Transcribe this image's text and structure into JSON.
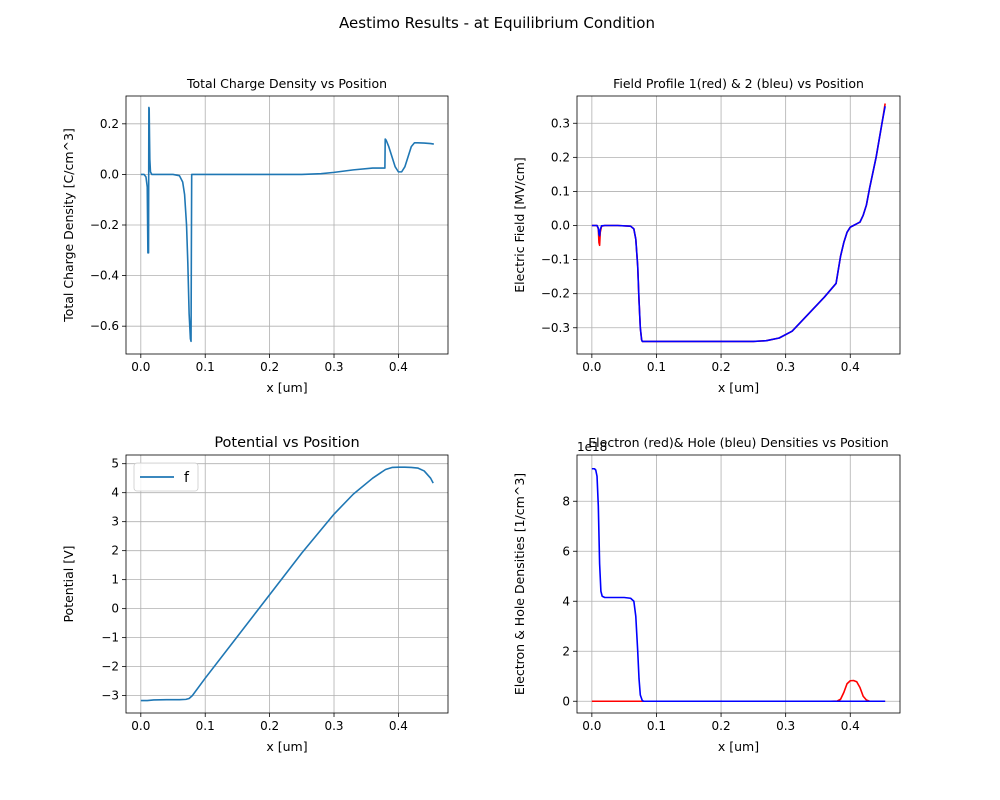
{
  "figure": {
    "suptitle": "Aestimo Results - at Equilibrium Condition"
  },
  "chart_data": [
    {
      "type": "line",
      "title": "Total Charge Density vs Position",
      "xlabel": "x [um]",
      "ylabel": "Total Charge Density [C/cm^3]",
      "xlim": [
        -0.023,
        0.477
      ],
      "ylim": [
        -0.71,
        0.31
      ],
      "xticks": [
        0.0,
        0.1,
        0.2,
        0.3,
        0.4
      ],
      "xtick_labels": [
        "0.0",
        "0.1",
        "0.2",
        "0.3",
        "0.4"
      ],
      "yticks": [
        -0.6,
        -0.4,
        -0.2,
        0.0,
        0.2
      ],
      "ytick_labels": [
        "−0.6",
        "−0.4",
        "−0.2",
        "0.0",
        "0.2"
      ],
      "grid": true,
      "series": [
        {
          "color": "#1f77b4",
          "x": [
            0.0,
            0.005,
            0.008,
            0.01,
            0.011,
            0.012,
            0.0125,
            0.013,
            0.0135,
            0.014,
            0.015,
            0.017,
            0.02,
            0.03,
            0.05,
            0.06,
            0.065,
            0.068,
            0.071,
            0.073,
            0.075,
            0.077,
            0.078,
            0.0785,
            0.079,
            0.08,
            0.1,
            0.2,
            0.25,
            0.28,
            0.3,
            0.33,
            0.36,
            0.379,
            0.3795,
            0.381,
            0.385,
            0.39,
            0.395,
            0.4,
            0.405,
            0.41,
            0.415,
            0.42,
            0.425,
            0.43,
            0.44,
            0.45,
            0.455
          ],
          "y": [
            0.0,
            0.0,
            -0.01,
            -0.05,
            -0.31,
            -0.31,
            0.265,
            0.26,
            0.15,
            0.06,
            0.01,
            0.0,
            0.0,
            0.0,
            0.0,
            -0.005,
            -0.03,
            -0.08,
            -0.2,
            -0.35,
            -0.55,
            -0.65,
            -0.66,
            -0.3,
            0.0,
            0.0,
            0.0,
            0.0,
            0.0,
            0.003,
            0.008,
            0.018,
            0.025,
            0.025,
            0.14,
            0.135,
            0.11,
            0.07,
            0.03,
            0.01,
            0.01,
            0.03,
            0.07,
            0.11,
            0.125,
            0.125,
            0.124,
            0.122,
            0.12
          ]
        }
      ]
    },
    {
      "type": "line",
      "title": "Field Profile 1(red) & 2 (bleu) vs Position",
      "xlabel": "x [um]",
      "ylabel": "Electric Field  [MV/cm]",
      "xlim": [
        -0.023,
        0.477
      ],
      "ylim": [
        -0.377,
        0.38
      ],
      "xticks": [
        0.0,
        0.1,
        0.2,
        0.3,
        0.4
      ],
      "xtick_labels": [
        "0.0",
        "0.1",
        "0.2",
        "0.3",
        "0.4"
      ],
      "yticks": [
        -0.3,
        -0.2,
        -0.1,
        0.0,
        0.1,
        0.2,
        0.3
      ],
      "ytick_labels": [
        "−0.3",
        "−0.2",
        "−0.1",
        "0.0",
        "0.1",
        "0.2",
        "0.3"
      ],
      "grid": true,
      "series": [
        {
          "color": "#ff0000",
          "x": [
            0.0,
            0.008,
            0.01,
            0.011,
            0.012,
            0.013,
            0.015,
            0.02,
            0.04,
            0.06,
            0.065,
            0.068,
            0.071,
            0.073,
            0.075,
            0.077,
            0.078,
            0.08,
            0.1,
            0.2,
            0.25,
            0.27,
            0.29,
            0.31,
            0.33,
            0.36,
            0.378,
            0.385,
            0.39,
            0.395,
            0.4,
            0.405,
            0.41,
            0.415,
            0.42,
            0.425,
            0.43,
            0.44,
            0.45,
            0.454
          ],
          "y": [
            0.0,
            0.0,
            -0.01,
            -0.05,
            -0.058,
            -0.02,
            -0.002,
            0.0,
            0.0,
            -0.002,
            -0.01,
            -0.04,
            -0.12,
            -0.22,
            -0.3,
            -0.335,
            -0.34,
            -0.34,
            -0.34,
            -0.34,
            -0.34,
            -0.338,
            -0.33,
            -0.31,
            -0.27,
            -0.21,
            -0.17,
            -0.09,
            -0.05,
            -0.02,
            -0.005,
            0.0,
            0.005,
            0.01,
            0.03,
            0.06,
            0.11,
            0.2,
            0.31,
            0.358
          ]
        },
        {
          "color": "#0000ff",
          "x": [
            0.0,
            0.008,
            0.01,
            0.011,
            0.012,
            0.013,
            0.015,
            0.02,
            0.04,
            0.06,
            0.065,
            0.068,
            0.071,
            0.073,
            0.075,
            0.077,
            0.078,
            0.08,
            0.1,
            0.2,
            0.25,
            0.27,
            0.29,
            0.31,
            0.33,
            0.36,
            0.378,
            0.385,
            0.39,
            0.395,
            0.4,
            0.405,
            0.41,
            0.415,
            0.42,
            0.425,
            0.43,
            0.44,
            0.45,
            0.454
          ],
          "y": [
            0.0,
            0.0,
            -0.008,
            -0.025,
            -0.03,
            -0.012,
            -0.001,
            0.0,
            0.0,
            -0.002,
            -0.01,
            -0.04,
            -0.12,
            -0.22,
            -0.3,
            -0.335,
            -0.34,
            -0.34,
            -0.34,
            -0.34,
            -0.34,
            -0.338,
            -0.33,
            -0.31,
            -0.27,
            -0.21,
            -0.17,
            -0.09,
            -0.05,
            -0.02,
            -0.005,
            0.0,
            0.005,
            0.01,
            0.03,
            0.06,
            0.11,
            0.2,
            0.31,
            0.35
          ]
        }
      ]
    },
    {
      "type": "line",
      "title": "Potential vs Position",
      "xlabel": "x [um]",
      "ylabel": "Potential [V]",
      "xlim": [
        -0.023,
        0.477
      ],
      "ylim": [
        -3.6,
        5.3
      ],
      "xticks": [
        0.0,
        0.1,
        0.2,
        0.3,
        0.4
      ],
      "xtick_labels": [
        "0.0",
        "0.1",
        "0.2",
        "0.3",
        "0.4"
      ],
      "yticks": [
        -3,
        -2,
        -1,
        0,
        1,
        2,
        3,
        4,
        5
      ],
      "ytick_labels": [
        "−3",
        "−2",
        "−1",
        "0",
        "1",
        "2",
        "3",
        "4",
        "5"
      ],
      "grid": true,
      "legend": {
        "position": "upper-left",
        "entries": [
          "f"
        ]
      },
      "series": [
        {
          "name": "f",
          "color": "#1f77b4",
          "x": [
            0.0,
            0.01,
            0.02,
            0.04,
            0.06,
            0.07,
            0.075,
            0.08,
            0.1,
            0.15,
            0.2,
            0.25,
            0.3,
            0.33,
            0.36,
            0.38,
            0.39,
            0.4,
            0.41,
            0.42,
            0.43,
            0.44,
            0.45,
            0.454
          ],
          "y": [
            -3.17,
            -3.17,
            -3.15,
            -3.14,
            -3.14,
            -3.13,
            -3.1,
            -3.0,
            -2.4,
            -0.96,
            0.48,
            1.92,
            3.26,
            3.95,
            4.5,
            4.8,
            4.87,
            4.88,
            4.88,
            4.87,
            4.85,
            4.75,
            4.5,
            4.33
          ]
        }
      ]
    },
    {
      "type": "line",
      "title": "Electron (red)& Hole (bleu) Densities vs Position",
      "xlabel": "x [um]",
      "ylabel": "Electron  & Hole  Densities [1/cm^3]",
      "y_offset_label": "1e18",
      "xlim": [
        -0.023,
        0.477
      ],
      "ylim": [
        -0.47,
        9.85
      ],
      "xticks": [
        0.0,
        0.1,
        0.2,
        0.3,
        0.4
      ],
      "xtick_labels": [
        "0.0",
        "0.1",
        "0.2",
        "0.3",
        "0.4"
      ],
      "yticks": [
        0,
        2,
        4,
        6,
        8
      ],
      "ytick_labels": [
        "0",
        "2",
        "4",
        "6",
        "8"
      ],
      "grid": true,
      "series": [
        {
          "color": "#ff0000",
          "x": [
            0.0,
            0.1,
            0.2,
            0.3,
            0.37,
            0.38,
            0.385,
            0.39,
            0.395,
            0.4,
            0.405,
            0.41,
            0.415,
            0.42,
            0.425,
            0.43,
            0.44,
            0.454
          ],
          "y": [
            0.0,
            0.0,
            0.0,
            0.0,
            0.0,
            0.01,
            0.08,
            0.35,
            0.7,
            0.82,
            0.83,
            0.78,
            0.55,
            0.2,
            0.05,
            0.0,
            0.0,
            0.0
          ]
        },
        {
          "color": "#0000ff",
          "x": [
            0.0,
            0.004,
            0.006,
            0.008,
            0.01,
            0.012,
            0.014,
            0.016,
            0.02,
            0.03,
            0.05,
            0.06,
            0.065,
            0.068,
            0.071,
            0.073,
            0.075,
            0.078,
            0.08,
            0.1,
            0.2,
            0.3,
            0.4,
            0.454
          ],
          "y": [
            9.3,
            9.3,
            9.25,
            9.0,
            7.8,
            5.5,
            4.4,
            4.2,
            4.15,
            4.15,
            4.15,
            4.12,
            4.0,
            3.4,
            2.0,
            0.9,
            0.25,
            0.03,
            0.0,
            0.0,
            0.0,
            0.0,
            0.0,
            0.0
          ]
        }
      ]
    }
  ]
}
